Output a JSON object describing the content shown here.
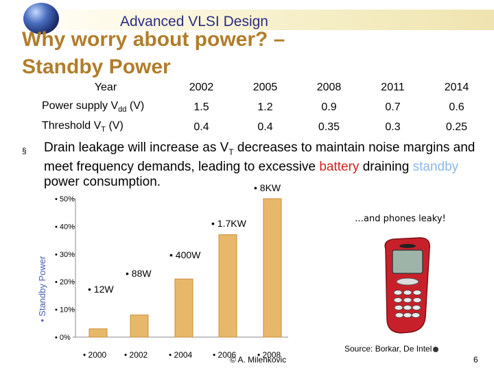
{
  "header": {
    "banner_title": "Advanced VLSI Design"
  },
  "slide": {
    "title_line1": "Why worry about power? –",
    "title_line2": "Standby Power"
  },
  "table": {
    "header": [
      "Year",
      "2002",
      "2005",
      "2008",
      "2011",
      "2014"
    ],
    "rows": [
      {
        "label_main": "Power supply V",
        "label_sub": "dd",
        "label_tail": " (V)",
        "values": [
          "1.5",
          "1.2",
          "0.9",
          "0.7",
          "0.6"
        ]
      },
      {
        "label_main": "Threshold V",
        "label_sub": "T",
        "label_tail": " (V)",
        "values": [
          "0.4",
          "0.4",
          "0.35",
          "0.3",
          "0.25"
        ]
      }
    ]
  },
  "bullet": {
    "marker": "§",
    "part1": "Drain leakage will increase as V",
    "part1_sub": "T",
    "part2": " decreases to maintain noise margins and meet frequency demands, leading to excessive ",
    "battery": "battery",
    "part3": " draining ",
    "standby": "standby",
    "part4": " power consumption."
  },
  "chart_data": {
    "type": "bar",
    "categories": [
      "• 2000",
      "• 2002",
      "• 2004",
      "• 2006",
      "• 2008"
    ],
    "values": [
      3,
      8,
      21,
      37,
      50
    ],
    "data_labels": [
      "• 12W",
      "• 88W",
      "• 400W",
      "• 1.7KW",
      "• 8KW"
    ],
    "ylabel": "• Standby Power",
    "y_ticks": [
      "• 0%",
      "• 10%",
      "• 20%",
      "• 30%",
      "• 40%",
      "• 50%"
    ],
    "y_tick_values": [
      0,
      10,
      20,
      30,
      40,
      50
    ],
    "ylim": [
      0,
      50
    ],
    "bar_color": "#e8b86a"
  },
  "phone_note": "…and phones leaky!",
  "source": "Source: Borkar, De Intel",
  "copyright": "© A. Milenkovic",
  "page_number": "6",
  "colors": {
    "title": "#b07d2a",
    "banner_text": "#2b2b80",
    "accent_red": "#d42020",
    "accent_blue": "#8ab8e8"
  }
}
